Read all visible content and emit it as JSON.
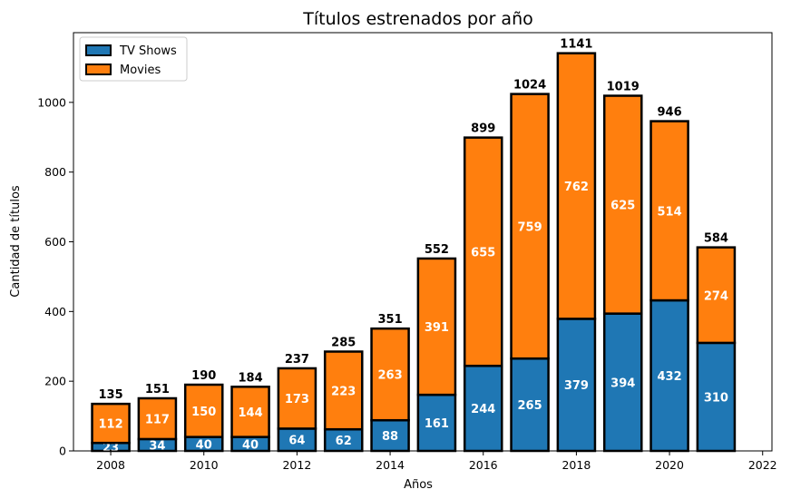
{
  "chart_data": {
    "type": "bar",
    "stacked": true,
    "title": "Títulos estrenados por año",
    "xlabel": "Años",
    "ylabel": "Cantidad de títulos",
    "x": [
      2008,
      2009,
      2010,
      2011,
      2012,
      2013,
      2014,
      2015,
      2016,
      2017,
      2018,
      2019,
      2020,
      2021
    ],
    "series": [
      {
        "name": "TV Shows",
        "color": "#1f77b4",
        "values": [
          23,
          34,
          40,
          40,
          64,
          62,
          88,
          161,
          244,
          265,
          379,
          394,
          432,
          310
        ]
      },
      {
        "name": "Movies",
        "color": "#ff7f0e",
        "values": [
          112,
          117,
          150,
          144,
          173,
          223,
          263,
          391,
          655,
          759,
          762,
          625,
          514,
          274
        ]
      }
    ],
    "totals": [
      135,
      151,
      190,
      184,
      237,
      285,
      351,
      552,
      899,
      1024,
      1141,
      1019,
      946,
      584
    ],
    "xlim": [
      2007.2,
      2022.2
    ],
    "ylim": [
      0,
      1200
    ],
    "xticks": [
      2008,
      2010,
      2012,
      2014,
      2016,
      2018,
      2020,
      2022
    ],
    "yticks": [
      0,
      200,
      400,
      600,
      800,
      1000
    ],
    "legend_position": "top-left",
    "grid": false
  }
}
